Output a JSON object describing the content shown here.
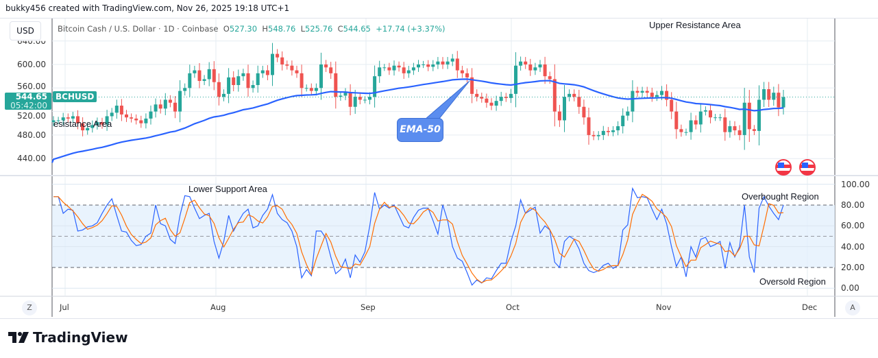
{
  "header": {
    "credit": "bukky456 created with TradingView.com, Nov 26, 2025 19:18 UTC+1"
  },
  "legend": {
    "symbol_desc": "Bitcoin Cash / U.S. Dollar · 1D · Coinbase",
    "open_label": "O",
    "open": "527.30",
    "high_label": "H",
    "high": "548.76",
    "low_label": "L",
    "low": "525.76",
    "close_label": "C",
    "close": "544.65",
    "change": "+17.74 (+3.37%)"
  },
  "currency_button": "USD",
  "price_tag": {
    "price": "544.65",
    "countdown": "05:42:00",
    "symbol": "BCHUSD"
  },
  "price_axis": [
    "640.00",
    "600.00",
    "560.00",
    "520.00",
    "480.00",
    "440.00"
  ],
  "stoch_axis": [
    "100.00",
    "80.00",
    "60.00",
    "40.00",
    "20.00",
    "0.00"
  ],
  "time_axis": [
    "Jul",
    "Aug",
    "Sep",
    "Oct",
    "Nov",
    "Dec"
  ],
  "annotations": {
    "upper_resistance": "Upper Resistance Area",
    "resistance": "esistance Area",
    "lower_support": "Lower Support Area",
    "overbought": "Overbought Region",
    "oversold": "Oversold Region",
    "ema_callout": "EMA-50"
  },
  "buttons": {
    "z": "Z",
    "a": "A"
  },
  "brand": "TradingView",
  "colors": {
    "up": "#26a69a",
    "down": "#ef5350",
    "ema": "#2962ff",
    "stoch_k": "#2962ff",
    "stoch_d": "#ff6d00",
    "band": "#e3f0fd"
  },
  "chart_data": {
    "type": "candlestick",
    "symbol": "BCHUSD",
    "interval": "1D",
    "start_date": "2025-06-29",
    "end_date": "2025-11-26",
    "price_ylim": [
      420,
      650
    ],
    "closes": [
      505,
      505,
      510,
      508,
      512,
      500,
      488,
      492,
      497,
      502,
      498,
      512,
      518,
      530,
      515,
      510,
      508,
      505,
      500,
      508,
      520,
      532,
      525,
      540,
      535,
      520,
      555,
      560,
      585,
      590,
      572,
      575,
      592,
      570,
      545,
      550,
      578,
      565,
      580,
      585,
      560,
      565,
      585,
      590,
      582,
      618,
      612,
      600,
      598,
      590,
      585,
      560,
      560,
      555,
      560,
      600,
      595,
      585,
      545,
      547,
      552,
      528,
      545,
      540,
      540,
      545,
      580,
      595,
      595,
      590,
      598,
      595,
      585,
      590,
      595,
      600,
      600,
      596,
      600,
      605,
      600,
      605,
      610,
      590,
      585,
      578,
      550,
      545,
      542,
      535,
      530,
      538,
      545,
      543,
      550,
      598,
      605,
      600,
      590,
      595,
      600,
      580,
      575,
      520,
      505,
      545,
      550,
      545,
      528,
      510,
      480,
      478,
      480,
      487,
      485,
      488,
      495,
      513,
      520,
      555,
      552,
      555,
      552,
      545,
      548,
      555,
      540,
      520,
      490,
      485,
      485,
      505,
      498,
      520,
      522,
      510,
      510,
      510,
      485,
      495,
      488,
      480,
      535,
      490,
      487,
      540,
      558,
      540,
      552,
      527,
      544.65
    ],
    "ema_period": 50,
    "stoch_ylim": [
      0,
      100
    ],
    "stoch_levels": [
      80,
      50,
      20
    ],
    "stoch_k": [
      88,
      88,
      72,
      76,
      75,
      55,
      56,
      59,
      60,
      63,
      72,
      80,
      86,
      70,
      55,
      54,
      46,
      41,
      42,
      50,
      53,
      80,
      62,
      60,
      47,
      43,
      70,
      89,
      88,
      77,
      67,
      70,
      72,
      45,
      29,
      45,
      70,
      55,
      64,
      72,
      76,
      58,
      60,
      70,
      76,
      90,
      72,
      66,
      63,
      55,
      40,
      10,
      18,
      12,
      55,
      55,
      48,
      30,
      14,
      18,
      28,
      10,
      32,
      25,
      35,
      60,
      92,
      76,
      80,
      77,
      80,
      70,
      60,
      58,
      68,
      75,
      77,
      77,
      65,
      52,
      80,
      65,
      40,
      29,
      26,
      15,
      3,
      8,
      5,
      10,
      9,
      17,
      24,
      24,
      45,
      60,
      85,
      72,
      75,
      78,
      53,
      60,
      56,
      25,
      20,
      45,
      50,
      47,
      38,
      24,
      17,
      15,
      17,
      22,
      24,
      19,
      22,
      56,
      61,
      96,
      87,
      88,
      87,
      76,
      66,
      76,
      62,
      40,
      21,
      30,
      11,
      40,
      30,
      47,
      49,
      40,
      42,
      45,
      19,
      44,
      30,
      40,
      80,
      30,
      15,
      77,
      88,
      79,
      72,
      66,
      80
    ]
  }
}
